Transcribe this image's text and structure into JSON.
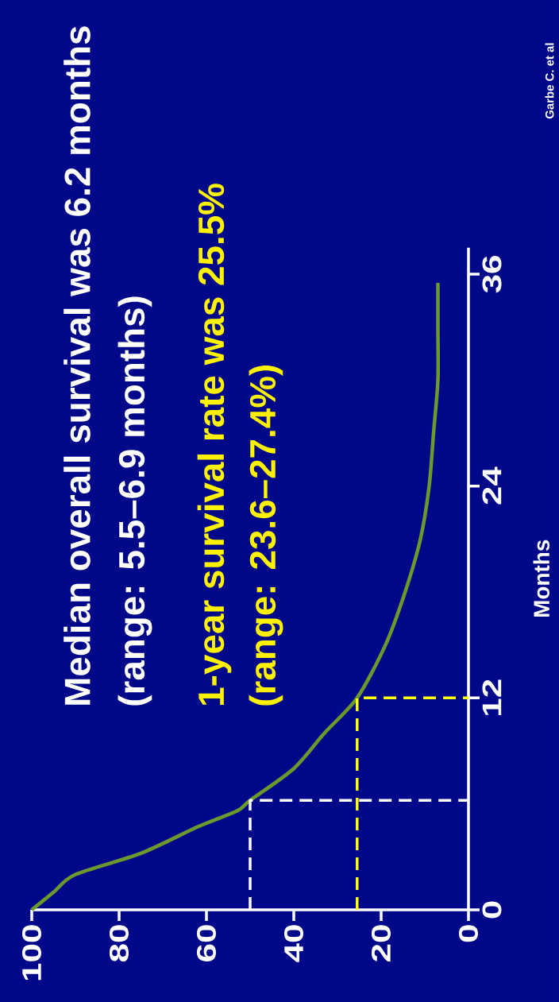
{
  "chart_data": {
    "type": "line",
    "ylabel": "Months",
    "xlim": [
      100,
      0
    ],
    "ylim": [
      0,
      37.5
    ],
    "xticks": [
      0,
      20,
      40,
      60,
      80,
      100
    ],
    "yticks": [
      0,
      12,
      24,
      36
    ],
    "grid": false,
    "marker": "none",
    "series": [
      {
        "color": "#6b9a2c",
        "line_style": "solid",
        "x": [
          100,
          95,
          90,
          75,
          62,
          53,
          50,
          40,
          33,
          25.5,
          19,
          14.5,
          11,
          9,
          8,
          7,
          7,
          7
        ],
        "values": [
          0,
          1,
          2,
          3.2,
          4.7,
          5.6,
          6.2,
          8,
          10,
          12,
          15,
          18,
          21,
          24,
          27,
          30,
          33,
          35.5
        ]
      },
      {
        "color": "#ffffff",
        "line_style": "dashed",
        "x": [
          50,
          50,
          0
        ],
        "values": [
          0,
          6.2,
          6.2
        ]
      },
      {
        "color": "#ffff00",
        "line_style": "dashed",
        "x": [
          25.5,
          25.5,
          0
        ],
        "values": [
          0,
          12,
          12
        ]
      }
    ],
    "annotations": [
      "Median overall survival was 6.2 months",
      "(range: 5.5–6.9 months)",
      "1-year survival rate was 25.5%",
      "(range: 23.6–27.4%)",
      "Garbe C. et al"
    ]
  }
}
